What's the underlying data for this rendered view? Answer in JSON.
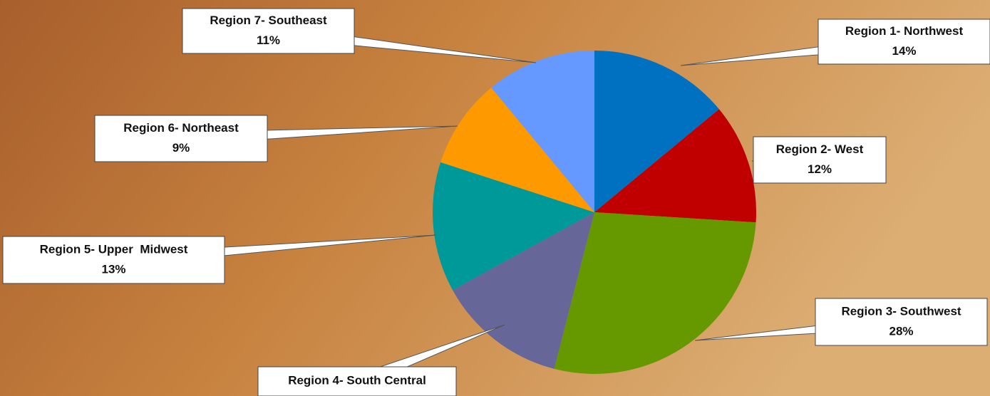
{
  "chart_data": {
    "type": "pie",
    "categories": [
      "Region 1- Northwest",
      "Region 2- West",
      "Region 3- Southwest",
      "Region 4- South Central",
      "Region 5- Upper  Midwest",
      "Region 6- Northeast",
      "Region 7- Southeast"
    ],
    "values": [
      14,
      12,
      28,
      13,
      13,
      9,
      11
    ],
    "value_labels": [
      "14%",
      "12%",
      "28%",
      "13%",
      "13%",
      "9%",
      "11%"
    ],
    "colors": [
      "#0070c0",
      "#c00000",
      "#669900",
      "#666699",
      "#009999",
      "#ff9900",
      "#6699ff"
    ]
  }
}
